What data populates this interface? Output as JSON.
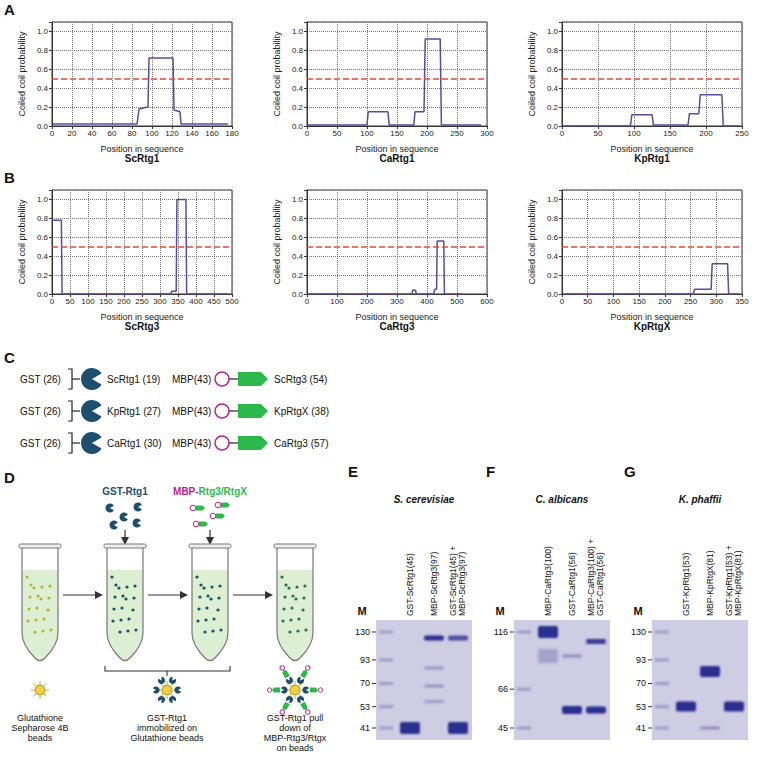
{
  "chart_data": [
    {
      "type": "line",
      "panel": "A",
      "title": "ScRtg1",
      "x_label": "Position in sequence",
      "y_label": "Coiled coil probability",
      "x": [
        1,
        85,
        87,
        96,
        97,
        121,
        122,
        128,
        129,
        176
      ],
      "values": [
        0.02,
        0.02,
        0.18,
        0.2,
        0.72,
        0.72,
        0.17,
        0.15,
        0.02,
        0.02
      ],
      "color": "#5b4b9e",
      "threshold": 0.5,
      "xlim": [
        0,
        180
      ],
      "xticks": [
        0,
        20,
        40,
        60,
        80,
        100,
        120,
        140,
        160,
        180
      ],
      "ylim": [
        0,
        1.1
      ],
      "yticks": [
        {
          "value": 0,
          "label": "0.0"
        },
        0.2,
        0.4,
        0.6,
        0.8,
        {
          "value": 1,
          "label": "1.0"
        }
      ],
      "grid": true
    },
    {
      "type": "line",
      "title": "CaRtg1",
      "x_label": "Position in sequence",
      "y_label": "Coiled coil probability",
      "x": [
        1,
        100,
        102,
        135,
        137,
        178,
        180,
        195,
        197,
        222,
        224,
        290
      ],
      "values": [
        0.01,
        0.01,
        0.15,
        0.15,
        0.01,
        0.01,
        0.15,
        0.15,
        0.92,
        0.92,
        0.01,
        0.01
      ],
      "color": "#5b4b9e",
      "threshold": 0.5,
      "xlim": [
        0,
        300
      ],
      "xticks": [
        0,
        50,
        100,
        150,
        200,
        250,
        300
      ],
      "ylim": [
        0,
        1.1
      ],
      "yticks": [
        {
          "value": 0,
          "label": "0.0"
        },
        0.2,
        0.4,
        0.6,
        0.8,
        {
          "value": 1,
          "label": "1.0"
        }
      ],
      "grid": true
    },
    {
      "type": "line",
      "title": "KpRtg1",
      "x_label": "Position in sequence",
      "y_label": "Coiled coil probability",
      "x": [
        1,
        95,
        97,
        125,
        127,
        175,
        177,
        190,
        192,
        222,
        224,
        245
      ],
      "values": [
        0,
        0,
        0.12,
        0.12,
        0.01,
        0.01,
        0.13,
        0.13,
        0.33,
        0.33,
        0,
        0
      ],
      "color": "#5b4b9e",
      "threshold": 0.5,
      "xlim": [
        0,
        250
      ],
      "xticks": [
        0,
        50,
        100,
        150,
        200,
        250
      ],
      "ylim": [
        0,
        1.1
      ],
      "yticks": [
        {
          "value": 0,
          "label": "0.0"
        },
        0.2,
        0.4,
        0.6,
        0.8,
        {
          "value": 1,
          "label": "1.0"
        }
      ],
      "grid": true
    },
    {
      "type": "line",
      "panel": "B",
      "title": "ScRtg3",
      "x_label": "Position in sequence",
      "y_label": "Coiled coil probability",
      "x": [
        1,
        26,
        28,
        330,
        332,
        345,
        347,
        372,
        374,
        490
      ],
      "values": [
        0.78,
        0.78,
        0,
        0,
        0.03,
        0.03,
        1.0,
        1.0,
        0,
        0
      ],
      "color": "#5b4b9e",
      "threshold": 0.5,
      "xlim": [
        0,
        500
      ],
      "xticks": [
        0,
        50,
        100,
        150,
        200,
        250,
        300,
        350,
        400,
        450,
        500
      ],
      "ylim": [
        0,
        1.1
      ],
      "yticks": [
        {
          "value": 0,
          "label": "0.0"
        },
        0.2,
        0.4,
        0.6,
        0.8,
        {
          "value": 1,
          "label": "1.0"
        }
      ],
      "grid": true
    },
    {
      "type": "line",
      "title": "CaRtg3",
      "x_label": "Position in sequence",
      "y_label": "Coiled coil probability",
      "x": [
        1,
        350,
        352,
        362,
        364,
        422,
        426,
        432,
        434,
        456,
        458,
        520
      ],
      "values": [
        0,
        0,
        0.04,
        0.04,
        0,
        0,
        0.05,
        0.05,
        0.56,
        0.56,
        0,
        0
      ],
      "color": "#5b4b9e",
      "threshold": 0.5,
      "xlim": [
        0,
        600
      ],
      "xticks": [
        0,
        100,
        200,
        300,
        400,
        500,
        600
      ],
      "ylim": [
        0,
        1.1
      ],
      "yticks": [
        {
          "value": 0,
          "label": "0.0"
        },
        0.2,
        0.4,
        0.6,
        0.8,
        {
          "value": 1,
          "label": "1.0"
        }
      ],
      "grid": true
    },
    {
      "type": "line",
      "title": "KpRtgX",
      "x_label": "Position in sequence",
      "y_label": "Coiled coil probability",
      "x": [
        1,
        255,
        258,
        290,
        292,
        322,
        324,
        345
      ],
      "values": [
        0,
        0,
        0.05,
        0.05,
        0.32,
        0.32,
        0,
        0
      ],
      "color": "#5b4b9e",
      "threshold": 0.5,
      "xlim": [
        0,
        350
      ],
      "xticks": [
        0,
        50,
        100,
        150,
        200,
        250,
        300,
        350
      ],
      "ylim": [
        0,
        1.1
      ],
      "yticks": [
        {
          "value": 0,
          "label": "0.0"
        },
        0.2,
        0.4,
        0.6,
        0.8,
        {
          "value": 1,
          "label": "1.0"
        }
      ],
      "grid": true
    }
  ],
  "panels": {
    "C": {
      "letter": "C",
      "rows": [
        {
          "tag": "GST (26)",
          "protein": "ScRtg1 (19)",
          "partner_tag": "MBP(43)",
          "partner": "ScRtg3 (54)"
        },
        {
          "tag": "GST (26)",
          "protein": "KpRtg1 (27)",
          "partner_tag": "MBP(43)",
          "partner": "KpRtgX (38)"
        },
        {
          "tag": "GST (26)",
          "protein": "CaRtg1 (30)",
          "partner_tag": "MBP(43)",
          "partner": "CaRtg3 (57)"
        }
      ]
    },
    "D": {
      "letter": "D",
      "reagents": [
        "GST-Rtg1",
        "MBP-Rtg3/RtgX"
      ],
      "captions": [
        "Glutathione Sepharose 4B beads",
        "GST-Rtg1 immobilized on Glutathione beads",
        "GST-Rtg1 pull down of MBP-Rtg3/Rtgx on beads"
      ]
    },
    "gels": [
      {
        "letter": "E",
        "title": "S. cerevisiae",
        "marker_label": "M",
        "markers": [
          130,
          93,
          70,
          53,
          41
        ],
        "lanes": [
          "GST-ScRtg1(45)",
          "MBP-ScRtg3(97)",
          "GST-ScRtg1(45) + MBP-ScRtg3(97)"
        ]
      },
      {
        "letter": "F",
        "title": "C. albicans",
        "marker_label": "M",
        "markers": [
          116,
          66,
          45
        ],
        "lanes": [
          "MBP-CaRtg3(100)",
          "GST-CaRtg1(56)",
          "MBP-CaRtg3(100) + GST-CaRtg1(56)"
        ]
      },
      {
        "letter": "G",
        "title": "K. phaffii",
        "marker_label": "M",
        "markers": [
          130,
          93,
          70,
          53,
          41
        ],
        "lanes": [
          "GST-KpRtg1(53)",
          "MBP-KpRtgX(81)",
          "GST-KpRtg1(53) + MBP-KpRtgX(81)"
        ]
      }
    ]
  }
}
